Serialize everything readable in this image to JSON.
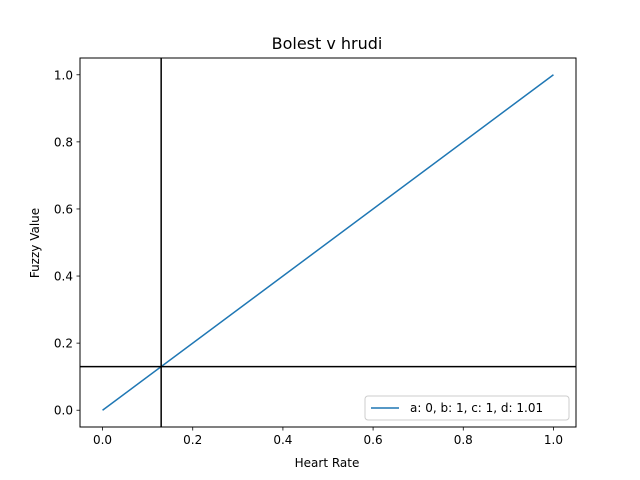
{
  "chart_data": {
    "type": "line",
    "title": "Bolest v hrudi",
    "xlabel": "Heart Rate",
    "ylabel": "Fuzzy Value",
    "xlim": [
      -0.05,
      1.05
    ],
    "ylim": [
      -0.05,
      1.05
    ],
    "xticks": [
      "0.0",
      "0.2",
      "0.4",
      "0.6",
      "0.8",
      "1.0"
    ],
    "yticks": [
      "0.0",
      "0.2",
      "0.4",
      "0.6",
      "0.8",
      "1.0"
    ],
    "grid": false,
    "legend_position": "lower-right",
    "series": [
      {
        "name": "a: 0, b: 1, c: 1, d: 1.01",
        "x": [
          0.0,
          1.0
        ],
        "y": [
          0.0,
          1.0
        ],
        "color": "#1f77b4"
      }
    ],
    "reference_lines": {
      "vertical_x": 0.13,
      "horizontal_y": 0.13,
      "color": "#000000"
    }
  }
}
